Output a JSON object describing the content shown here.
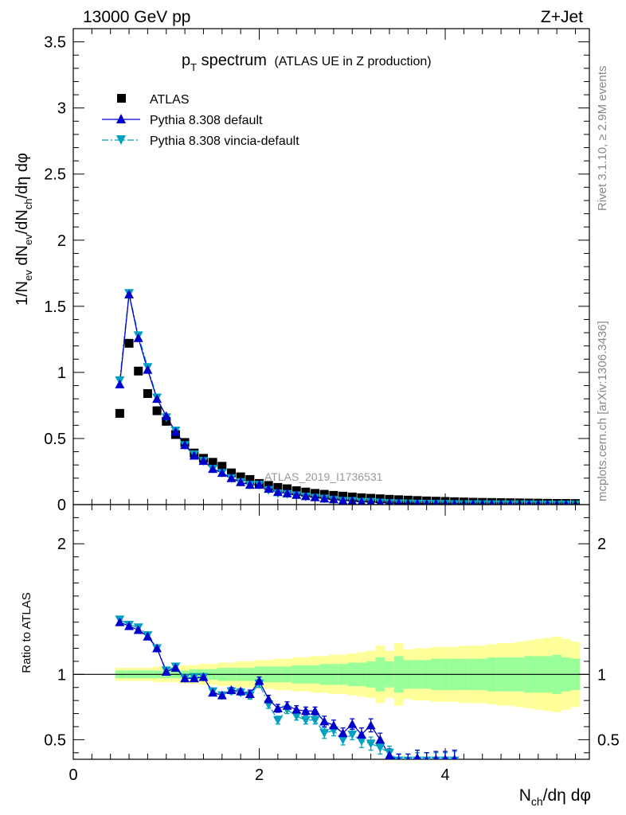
{
  "header": {
    "left": "13000 GeV pp",
    "right": "Z+Jet"
  },
  "title": {
    "main": "p",
    "main_sub": "T",
    "main_rest": " spectrum",
    "detail": "(ATLAS UE in Z production)"
  },
  "side_labels": {
    "rivet": "Rivet 3.1.10, ≥ 2.9M events",
    "mcplots": "mcplots.cern.ch [arXiv:1306.3436]"
  },
  "watermark": "ATLAS_2019_I1736531",
  "legend": [
    {
      "label": "ATLAS",
      "color": "#000000",
      "marker": "square"
    },
    {
      "label": "Pythia 8.308 default",
      "color": "#0000cc",
      "marker": "triangle-up",
      "dash": "solid"
    },
    {
      "label": "Pythia 8.308 vincia-default",
      "color": "#00a0c0",
      "marker": "triangle-down",
      "dash": "dashdot"
    }
  ],
  "colors": {
    "data": "#000000",
    "default": "#0000cc",
    "vincia": "#00a0c0",
    "band_inner": "#99ff99",
    "band_outer": "#ffff99"
  },
  "chart_data": [
    {
      "type": "scatter",
      "panel": "main",
      "ylabel_parts": [
        "1/N",
        "ev",
        " dN",
        "ev",
        "/dN",
        "ch",
        "/dη dφ"
      ],
      "xlim": [
        0,
        5.55
      ],
      "ylim": [
        0,
        3.6
      ],
      "yticks": [
        0,
        0.5,
        1,
        1.5,
        2,
        2.5,
        3,
        3.5
      ],
      "ytick_labels": [
        "0",
        "0.5",
        "1",
        "1.5",
        "2",
        "2.5",
        "3",
        "3.5"
      ],
      "x": [
        0.5,
        0.6,
        0.7,
        0.8,
        0.9,
        1.0,
        1.1,
        1.2,
        1.3,
        1.4,
        1.5,
        1.6,
        1.7,
        1.8,
        1.9,
        2.0,
        2.1,
        2.2,
        2.3,
        2.4,
        2.5,
        2.6,
        2.7,
        2.8,
        2.9,
        3.0,
        3.1,
        3.2,
        3.3,
        3.4,
        3.5,
        3.6,
        3.7,
        3.8,
        3.9,
        4.0,
        4.1,
        4.2,
        4.3,
        4.4,
        4.5,
        4.6,
        4.7,
        4.8,
        4.9,
        5.0,
        5.1,
        5.2,
        5.3,
        5.4
      ],
      "series": [
        {
          "name": "ATLAS",
          "values": [
            0.69,
            1.22,
            1.01,
            0.84,
            0.71,
            0.63,
            0.53,
            0.47,
            0.39,
            0.35,
            0.32,
            0.29,
            0.24,
            0.21,
            0.19,
            0.16,
            0.145,
            0.13,
            0.12,
            0.105,
            0.095,
            0.085,
            0.078,
            0.07,
            0.064,
            0.058,
            0.052,
            0.048,
            0.044,
            0.04,
            0.037,
            0.034,
            0.031,
            0.028,
            0.026,
            0.024,
            0.022,
            0.02,
            0.018,
            0.017,
            0.016,
            0.015,
            0.014,
            0.013,
            0.012,
            0.011,
            0.01,
            0.009,
            0.009,
            0.008
          ]
        },
        {
          "name": "Pythia 8.308 default",
          "values": [
            0.91,
            1.59,
            1.26,
            1.02,
            0.8,
            0.67,
            0.55,
            0.45,
            0.37,
            0.33,
            0.27,
            0.24,
            0.2,
            0.17,
            0.15,
            0.15,
            0.12,
            0.095,
            0.085,
            0.074,
            0.064,
            0.056,
            0.046,
            0.04,
            0.031,
            0.029,
            0.021,
            0.022,
            0.016,
            0.013,
            0.011,
            0.009,
            0.008,
            0.006,
            0.006,
            0.005,
            0.004,
            0.004,
            0.003,
            0.003,
            0.003,
            0.002,
            0.002,
            0.002,
            0.002,
            0.002,
            0.001,
            0.001,
            0.001,
            0.001
          ]
        },
        {
          "name": "Pythia 8.308 vincia-default",
          "values": [
            0.94,
            1.6,
            1.28,
            1.04,
            0.81,
            0.66,
            0.56,
            0.45,
            0.38,
            0.33,
            0.27,
            0.24,
            0.2,
            0.17,
            0.15,
            0.15,
            0.11,
            0.085,
            0.08,
            0.07,
            0.06,
            0.052,
            0.045,
            0.035,
            0.028,
            0.026,
            0.02,
            0.02,
            0.015,
            0.012,
            0.01,
            0.009,
            0.007,
            0.006,
            0.005,
            0.005,
            0.004,
            0.003,
            0.003,
            0.003,
            0.002,
            0.002,
            0.002,
            0.002,
            0.002,
            0.001,
            0.001,
            0.001,
            0.001,
            0.001
          ]
        }
      ]
    },
    {
      "type": "scatter",
      "panel": "ratio",
      "ylabel": "Ratio to ATLAS",
      "xlabel_parts": [
        "N",
        "ch",
        "/dη dφ"
      ],
      "xlim": [
        0,
        5.55
      ],
      "ylim": [
        0.35,
        2.3
      ],
      "xticks": [
        0,
        2,
        4
      ],
      "xtick_labels": [
        "0",
        "2",
        "4"
      ],
      "yticks": [
        0.5,
        1,
        2
      ],
      "ytick_labels": [
        "0.5",
        "1",
        "2"
      ],
      "x": [
        0.5,
        0.6,
        0.7,
        0.8,
        0.9,
        1.0,
        1.1,
        1.2,
        1.3,
        1.4,
        1.5,
        1.6,
        1.7,
        1.8,
        1.9,
        2.0,
        2.1,
        2.2,
        2.3,
        2.4,
        2.5,
        2.6,
        2.7,
        2.8,
        2.9,
        3.0,
        3.1,
        3.2,
        3.3,
        3.4,
        3.5,
        3.6,
        3.7,
        3.8,
        3.9,
        4.0,
        4.1
      ],
      "band_x": [
        0.5,
        0.6,
        0.7,
        0.8,
        0.9,
        1.0,
        1.1,
        1.2,
        1.3,
        1.4,
        1.5,
        1.6,
        1.7,
        1.8,
        1.9,
        2.0,
        2.1,
        2.2,
        2.3,
        2.4,
        2.5,
        2.6,
        2.7,
        2.8,
        2.9,
        3.0,
        3.1,
        3.2,
        3.3,
        3.4,
        3.5,
        3.6,
        3.7,
        3.8,
        3.9,
        4.0,
        4.1,
        4.2,
        4.3,
        4.4,
        4.5,
        4.6,
        4.7,
        4.8,
        4.9,
        5.0,
        5.1,
        5.2,
        5.3,
        5.4
      ],
      "band_inner": [
        0.03,
        0.03,
        0.03,
        0.03,
        0.03,
        0.03,
        0.03,
        0.03,
        0.04,
        0.04,
        0.04,
        0.05,
        0.05,
        0.05,
        0.05,
        0.06,
        0.06,
        0.06,
        0.06,
        0.07,
        0.07,
        0.07,
        0.08,
        0.08,
        0.08,
        0.09,
        0.09,
        0.1,
        0.13,
        0.1,
        0.14,
        0.11,
        0.11,
        0.11,
        0.12,
        0.12,
        0.12,
        0.12,
        0.12,
        0.12,
        0.13,
        0.13,
        0.13,
        0.13,
        0.14,
        0.14,
        0.14,
        0.15,
        0.13,
        0.12
      ],
      "band_outer": [
        0.05,
        0.05,
        0.05,
        0.05,
        0.06,
        0.06,
        0.06,
        0.07,
        0.07,
        0.08,
        0.08,
        0.09,
        0.09,
        0.1,
        0.1,
        0.11,
        0.11,
        0.12,
        0.12,
        0.13,
        0.13,
        0.14,
        0.14,
        0.15,
        0.15,
        0.16,
        0.17,
        0.18,
        0.22,
        0.18,
        0.24,
        0.19,
        0.2,
        0.2,
        0.21,
        0.21,
        0.21,
        0.22,
        0.22,
        0.22,
        0.23,
        0.24,
        0.24,
        0.25,
        0.26,
        0.27,
        0.28,
        0.29,
        0.27,
        0.25
      ],
      "series": [
        {
          "name": "Pythia 8.308 default",
          "values": [
            1.4,
            1.37,
            1.34,
            1.29,
            1.2,
            1.02,
            1.05,
            0.97,
            0.97,
            0.98,
            0.86,
            0.84,
            0.88,
            0.87,
            0.85,
            0.95,
            0.81,
            0.74,
            0.76,
            0.73,
            0.72,
            0.72,
            0.64,
            0.61,
            0.55,
            0.62,
            0.54,
            0.61,
            0.5,
            0.38,
            0.34,
            0.34,
            0.36,
            0.34,
            0.35,
            0.35,
            0.35
          ],
          "errors": [
            0.02,
            0.02,
            0.02,
            0.02,
            0.02,
            0.02,
            0.02,
            0.02,
            0.02,
            0.02,
            0.02,
            0.02,
            0.02,
            0.02,
            0.03,
            0.03,
            0.03,
            0.03,
            0.03,
            0.03,
            0.03,
            0.03,
            0.04,
            0.04,
            0.04,
            0.04,
            0.05,
            0.05,
            0.05,
            0.05,
            0.05,
            0.05,
            0.06,
            0.06,
            0.06,
            0.06,
            0.07
          ]
        },
        {
          "name": "Pythia 8.308 vincia-default",
          "values": [
            1.42,
            1.38,
            1.36,
            1.3,
            1.2,
            1.03,
            1.06,
            0.97,
            0.98,
            0.98,
            0.87,
            0.84,
            0.87,
            0.86,
            0.84,
            0.93,
            0.77,
            0.65,
            0.73,
            0.68,
            0.65,
            0.65,
            0.55,
            0.57,
            0.5,
            0.54,
            0.49,
            0.47,
            0.44,
            0.4,
            0.34,
            0.34,
            0.34,
            0.34,
            0.34,
            0.34,
            0.34
          ],
          "errors": [
            0.02,
            0.02,
            0.02,
            0.02,
            0.02,
            0.02,
            0.02,
            0.02,
            0.02,
            0.02,
            0.02,
            0.02,
            0.02,
            0.02,
            0.03,
            0.03,
            0.03,
            0.03,
            0.03,
            0.03,
            0.03,
            0.03,
            0.04,
            0.04,
            0.04,
            0.04,
            0.05,
            0.05,
            0.05,
            0.05,
            0.05,
            0.05,
            0.06,
            0.06,
            0.06,
            0.06,
            0.07
          ]
        }
      ]
    }
  ]
}
